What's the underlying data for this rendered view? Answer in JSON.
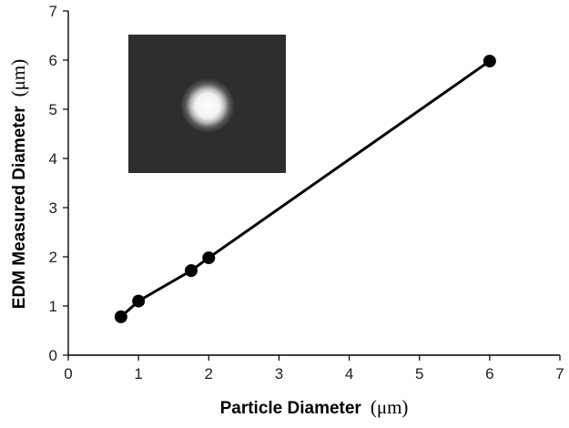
{
  "chart_data": {
    "type": "scatter",
    "title": "",
    "xlabel": "Particle Diameter",
    "xlabel_unit": "(μm)",
    "ylabel": "EDM Measured Diameter",
    "ylabel_unit": "(μm)",
    "xlim": [
      0,
      7
    ],
    "ylim": [
      0,
      7
    ],
    "x_ticks": [
      "0",
      "1",
      "2",
      "3",
      "4",
      "5",
      "6",
      "7"
    ],
    "y_ticks": [
      "0",
      "1",
      "2",
      "3",
      "4",
      "5",
      "6",
      "7"
    ],
    "grid": false,
    "series": [
      {
        "points": [
          {
            "x": 0.75,
            "y": 0.78
          },
          {
            "x": 1.0,
            "y": 1.1
          },
          {
            "x": 1.75,
            "y": 1.72
          },
          {
            "x": 2.0,
            "y": 1.98
          },
          {
            "x": 6.0,
            "y": 5.98
          }
        ],
        "color": "#000000",
        "connected": true
      }
    ],
    "inset": {
      "kind": "particle-image",
      "background": "#2e2e2e",
      "spot_color": "#f4f4f4"
    }
  }
}
